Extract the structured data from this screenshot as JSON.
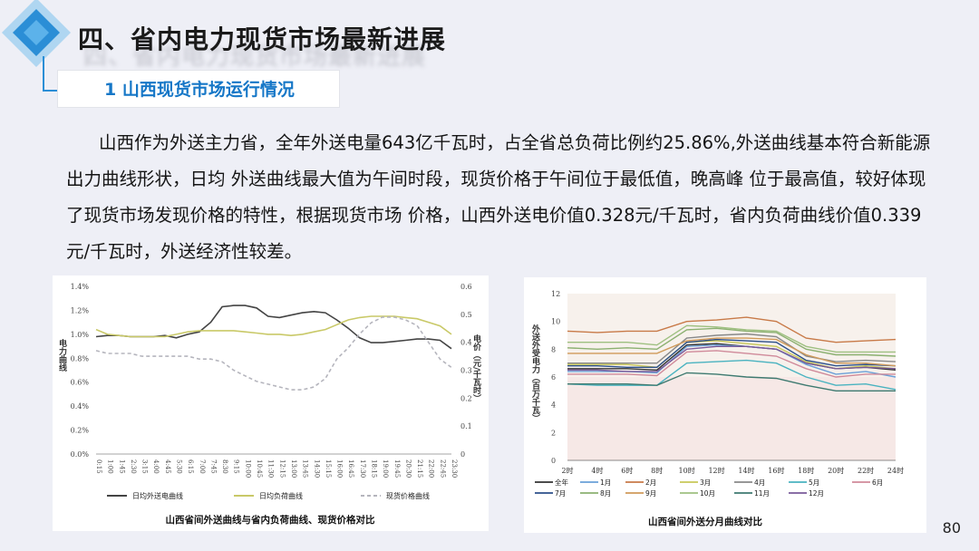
{
  "page": {
    "title": "四、省内电力现货市场最新进展",
    "section": "1 山西现货市场运行情况",
    "paragraph": "山西作为外送主力省，全年外送电量643亿千瓦时，占全省总负荷比例约25.86%,外送曲线基本符合新能源出力曲线形状，日均 外送曲线最大值为午间时段，现货价格于午间位于最低值，晚高峰 位于最高值，较好体现了现货市场发现价格的特性，根据现货市场 价格，山西外送电价值0.328元/千瓦时，省内负荷曲线价值0.339 元/千瓦时，外送经济性较差。",
    "page_number": "80"
  },
  "colors": {
    "accent": "#1677c7",
    "logo_light": "#9fd0f0",
    "logo_dark": "#2b8ed6"
  },
  "chart_data": [
    {
      "type": "line",
      "caption": "山西省间外送曲线与省内负荷曲线、现货价格对比",
      "ylabel_left": "电力曲线",
      "ylabel_right": "电价（元/千瓦时）",
      "y_left_ticks": [
        "0.0%",
        "0.2%",
        "0.4%",
        "0.6%",
        "0.8%",
        "1.0%",
        "1.2%",
        "1.4%"
      ],
      "y_right_ticks": [
        "0",
        "0.1",
        "0.2",
        "0.3",
        "0.4",
        "0.5",
        "0.6"
      ],
      "ylim_left": [
        0,
        1.4
      ],
      "ylim_right": [
        0,
        0.6
      ],
      "x_ticks": [
        "0:15",
        "1:00",
        "1:45",
        "2:30",
        "3:15",
        "4:00",
        "4:45",
        "5:30",
        "6:15",
        "7:00",
        "7:45",
        "8:30",
        "9:15",
        "10:00",
        "10:45",
        "11:30",
        "12:15",
        "13:00",
        "13:45",
        "14:30",
        "15:15",
        "16:00",
        "16:45",
        "17:30",
        "18:15",
        "19:00",
        "19:45",
        "20:30",
        "21:15",
        "22:00",
        "22:45",
        "23:30"
      ],
      "series": [
        {
          "name": "日均外送电曲线",
          "axis": "left",
          "color": "#444444",
          "dash": "none",
          "values": [
            0.98,
            0.99,
            0.99,
            0.98,
            0.98,
            0.98,
            0.99,
            0.97,
            1.0,
            1.02,
            1.1,
            1.23,
            1.24,
            1.24,
            1.22,
            1.15,
            1.14,
            1.16,
            1.18,
            1.19,
            1.18,
            1.12,
            1.05,
            0.97,
            0.93,
            0.93,
            0.94,
            0.95,
            0.96,
            0.96,
            0.95,
            0.88
          ]
        },
        {
          "name": "日均负荷曲线",
          "axis": "left",
          "color": "#c9c968",
          "dash": "none",
          "values": [
            1.04,
            1.0,
            0.99,
            0.98,
            0.98,
            0.98,
            0.98,
            1.0,
            1.02,
            1.03,
            1.03,
            1.03,
            1.03,
            1.02,
            1.01,
            1.0,
            1.0,
            0.99,
            1.0,
            1.02,
            1.04,
            1.08,
            1.12,
            1.14,
            1.15,
            1.15,
            1.15,
            1.14,
            1.13,
            1.1,
            1.07,
            1.0
          ]
        },
        {
          "name": "现货价格曲线",
          "axis": "right",
          "color": "#b5b5bd",
          "dash": "4 3",
          "values": [
            0.37,
            0.36,
            0.36,
            0.36,
            0.35,
            0.35,
            0.35,
            0.35,
            0.35,
            0.34,
            0.34,
            0.33,
            0.3,
            0.28,
            0.26,
            0.25,
            0.24,
            0.23,
            0.23,
            0.24,
            0.27,
            0.34,
            0.38,
            0.43,
            0.47,
            0.49,
            0.49,
            0.48,
            0.46,
            0.4,
            0.34,
            0.31
          ]
        }
      ]
    },
    {
      "type": "line",
      "caption": "山西省间外送分月曲线对比",
      "ylabel": "外送外受电力（百万千瓦）",
      "ylim": [
        0,
        12
      ],
      "y_ticks": [
        "0",
        "2",
        "4",
        "6",
        "8",
        "10",
        "12"
      ],
      "x_ticks": [
        "2时",
        "4时",
        "6时",
        "8时",
        "10时",
        "12时",
        "14时",
        "16时",
        "18时",
        "20时",
        "22时",
        "24时"
      ],
      "series": [
        {
          "name": "全年",
          "color": "#333333",
          "values": [
            6.6,
            6.6,
            6.6,
            6.5,
            8.3,
            8.4,
            8.2,
            8.0,
            7.0,
            6.6,
            6.7,
            6.5
          ]
        },
        {
          "name": "1月",
          "color": "#6aa0d8",
          "values": [
            6.4,
            6.4,
            6.4,
            6.3,
            8.2,
            8.3,
            8.2,
            8.0,
            6.9,
            6.2,
            6.4,
            6.0
          ]
        },
        {
          "name": "2月",
          "color": "#c87a48",
          "values": [
            9.3,
            9.2,
            9.3,
            9.3,
            10.0,
            10.1,
            10.3,
            10.0,
            8.8,
            8.5,
            8.6,
            8.7
          ]
        },
        {
          "name": "3月",
          "color": "#c8c858",
          "values": [
            6.9,
            6.9,
            6.9,
            6.7,
            8.5,
            8.6,
            8.4,
            8.2,
            7.1,
            6.6,
            6.8,
            6.6
          ]
        },
        {
          "name": "4月",
          "color": "#888888",
          "values": [
            7.0,
            7.0,
            7.0,
            7.0,
            8.8,
            9.0,
            9.1,
            8.9,
            7.5,
            7.1,
            7.2,
            7.1
          ]
        },
        {
          "name": "5月",
          "color": "#4ab3c0",
          "values": [
            5.5,
            5.4,
            5.4,
            5.4,
            7.0,
            7.1,
            7.2,
            7.0,
            6.0,
            5.4,
            5.5,
            5.1
          ]
        },
        {
          "name": "6月",
          "color": "#d08a9a",
          "values": [
            6.2,
            6.2,
            6.2,
            6.1,
            7.8,
            7.9,
            7.7,
            7.5,
            6.6,
            6.0,
            6.2,
            6.2
          ]
        },
        {
          "name": "7月",
          "color": "#2b4f8a",
          "values": [
            6.8,
            6.8,
            6.7,
            6.7,
            8.5,
            8.7,
            8.6,
            8.5,
            7.2,
            6.8,
            6.9,
            6.8
          ]
        },
        {
          "name": "8月",
          "color": "#8bb070",
          "values": [
            8.1,
            8.0,
            8.1,
            8.0,
            9.4,
            9.5,
            9.3,
            9.2,
            8.0,
            7.6,
            7.6,
            7.5
          ]
        },
        {
          "name": "9月",
          "color": "#d09a5a",
          "values": [
            7.7,
            7.7,
            7.7,
            7.7,
            8.6,
            8.8,
            8.8,
            8.7,
            7.6,
            7.0,
            7.0,
            6.8
          ]
        },
        {
          "name": "10月",
          "color": "#9ec080",
          "values": [
            8.5,
            8.5,
            8.5,
            8.3,
            9.7,
            9.6,
            9.4,
            9.3,
            8.2,
            7.8,
            7.8,
            7.8
          ]
        },
        {
          "name": "11月",
          "color": "#3e7a70",
          "values": [
            5.5,
            5.5,
            5.5,
            5.4,
            6.3,
            6.2,
            6.0,
            5.9,
            5.4,
            5.0,
            5.0,
            5.0
          ]
        },
        {
          "name": "12月",
          "color": "#7a5a9a",
          "values": [
            6.5,
            6.5,
            6.4,
            6.4,
            8.0,
            8.2,
            8.2,
            8.0,
            7.0,
            6.6,
            6.7,
            6.6
          ]
        }
      ]
    }
  ]
}
